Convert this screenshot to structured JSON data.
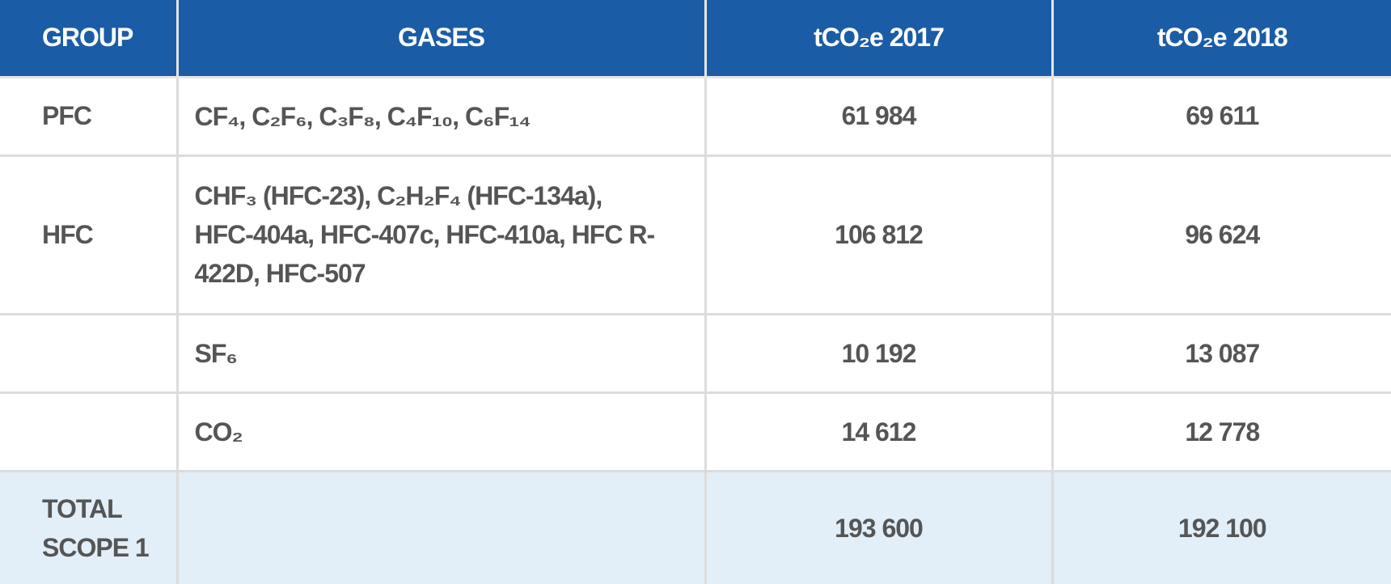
{
  "table": {
    "header": [
      "GROUP",
      "GASES",
      "tCO₂e 2017",
      "tCO₂e 2018"
    ],
    "rows": [
      {
        "group": "PFC",
        "gases": "CF₄, C₂F₆, C₃F₈, C₄F₁₀, C₆F₁₄",
        "y2017": "61 984",
        "y2018": "69 611"
      },
      {
        "group": "HFC",
        "gases": "CHF₃ (HFC-23), C₂H₂F₄ (HFC-134a), HFC-404a, HFC-407c, HFC-410a, HFC R-422D, HFC-507",
        "y2017": "106 812",
        "y2018": "96 624"
      },
      {
        "gases": "SF₆",
        "y2017": "10 192",
        "y2018": "13 087"
      },
      {
        "gases": "CO₂",
        "y2017": "14 612",
        "y2018": "12 778"
      }
    ],
    "total": {
      "group": "TOTAL SCOPE 1",
      "y2017": "193 600",
      "y2018": "192 100"
    }
  }
}
